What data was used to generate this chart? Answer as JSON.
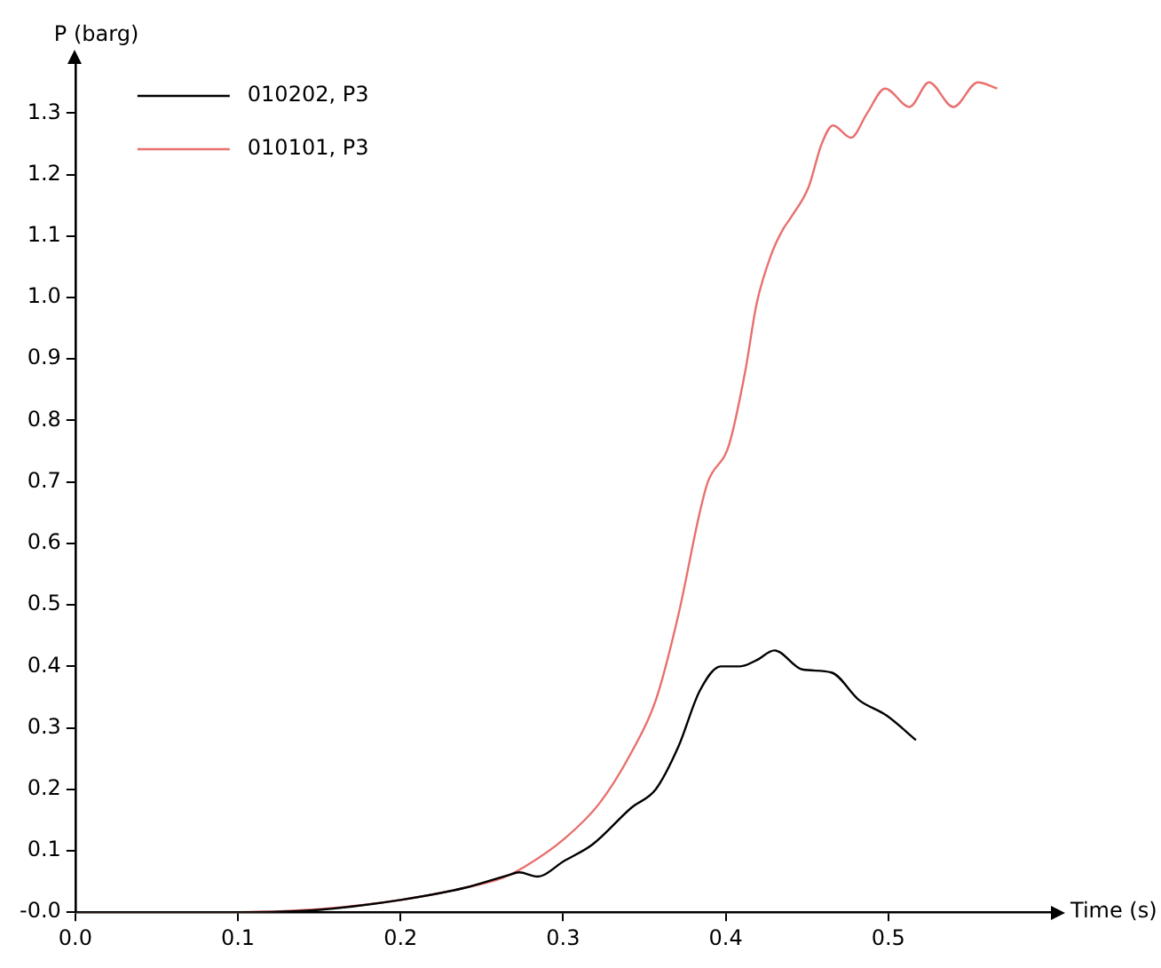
{
  "chart_data": {
    "type": "line",
    "xlabel": "Time (s)",
    "ylabel": "P (barg)",
    "xlim": [
      0,
      0.6
    ],
    "ylim": [
      0,
      1.38
    ],
    "xticks": [
      {
        "value": 0,
        "label": "0.0"
      },
      0.1,
      0.2,
      0.3,
      0.4,
      0.5
    ],
    "yticks": [
      {
        "value": 0,
        "label": "-0.0"
      },
      0.1,
      0.2,
      0.3,
      0.4,
      0.5,
      0.6,
      0.7,
      0.8,
      0.9,
      {
        "value": 1,
        "label": "1.0"
      },
      1.1,
      1.2,
      1.3
    ],
    "grid": false,
    "legend": "top left",
    "marker": "none",
    "line_style": "solid",
    "series": [
      {
        "name": "010202, P3",
        "color": "#000000",
        "x": [
          0,
          0.1,
          0.15,
          0.2,
          0.24,
          0.266,
          0.273,
          0.284,
          0.301,
          0.318,
          0.342,
          0.357,
          0.371,
          0.384,
          0.397,
          0.409,
          0.419,
          0.43,
          0.447,
          0.465,
          0.482,
          0.499,
          0.517
        ],
        "values": [
          0,
          0,
          0.004,
          0.02,
          0.04,
          0.06,
          0.065,
          0.058,
          0.084,
          0.11,
          0.17,
          0.2,
          0.27,
          0.36,
          0.4,
          0.4,
          0.41,
          0.426,
          0.395,
          0.39,
          0.345,
          0.32,
          0.28
        ]
      },
      {
        "name": "010101, P3",
        "color": "#e8706e",
        "x": [
          0,
          0.1,
          0.15,
          0.2,
          0.24,
          0.263,
          0.277,
          0.301,
          0.322,
          0.342,
          0.357,
          0.371,
          0.384,
          0.389,
          0.402,
          0.412,
          0.419,
          0.428,
          0.435,
          0.44,
          0.451,
          0.459,
          0.466,
          0.477,
          0.487,
          0.498,
          0.513,
          0.525,
          0.54,
          0.555,
          0.567
        ],
        "values": [
          0,
          0,
          0.005,
          0.02,
          0.04,
          0.056,
          0.075,
          0.12,
          0.176,
          0.26,
          0.345,
          0.485,
          0.65,
          0.7,
          0.76,
          0.88,
          0.99,
          1.07,
          1.11,
          1.13,
          1.18,
          1.25,
          1.28,
          1.26,
          1.3,
          1.34,
          1.31,
          1.35,
          1.31,
          1.35,
          1.34
        ]
      }
    ]
  }
}
